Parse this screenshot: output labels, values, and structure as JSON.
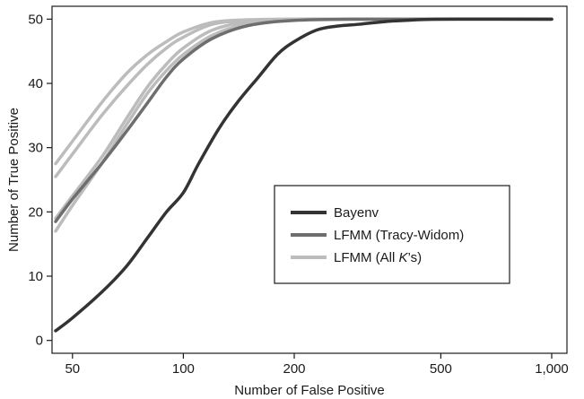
{
  "chart_data": {
    "type": "line",
    "xlabel": "Number of False Positive",
    "ylabel": "Number of True Positive",
    "x_scale": "log",
    "xlim": [
      44,
      1100
    ],
    "ylim": [
      -2,
      52
    ],
    "x_ticks": [
      {
        "value": 50,
        "label": "50"
      },
      {
        "value": 100,
        "label": "100"
      },
      {
        "value": 200,
        "label": "200"
      },
      {
        "value": 500,
        "label": "500"
      },
      {
        "value": 1000,
        "label": "1,000"
      }
    ],
    "y_ticks": [
      {
        "value": 0,
        "label": "0"
      },
      {
        "value": 10,
        "label": "10"
      },
      {
        "value": 20,
        "label": "20"
      },
      {
        "value": 30,
        "label": "30"
      },
      {
        "value": 40,
        "label": "40"
      },
      {
        "value": 50,
        "label": "50"
      }
    ],
    "grid": false,
    "legend_position": "lower-right",
    "legend": [
      {
        "label": "Bayenv",
        "color": "#333333"
      },
      {
        "label": "LFMM (Tracy-Widom)",
        "color": "#6e6e6e"
      },
      {
        "label": "LFMM (All ",
        "label_italic": "K",
        "label_suffix": "’s)",
        "color": "#bcbcbc"
      }
    ],
    "series": [
      {
        "group": "LFMM (All K’s)",
        "color": "#bcbcbc",
        "width": 3.5,
        "points": [
          [
            45,
            25.5
          ],
          [
            50,
            29
          ],
          [
            60,
            35
          ],
          [
            70,
            39.5
          ],
          [
            80,
            43
          ],
          [
            90,
            45.5
          ],
          [
            100,
            47.2
          ],
          [
            120,
            49.2
          ],
          [
            150,
            49.8
          ],
          [
            200,
            50
          ],
          [
            300,
            50
          ],
          [
            500,
            50
          ],
          [
            1000,
            50
          ]
        ]
      },
      {
        "group": "LFMM (All K’s)",
        "color": "#bcbcbc",
        "width": 3.5,
        "points": [
          [
            45,
            27.5
          ],
          [
            50,
            31
          ],
          [
            60,
            37
          ],
          [
            70,
            41.5
          ],
          [
            80,
            44.5
          ],
          [
            90,
            46.5
          ],
          [
            100,
            48
          ],
          [
            120,
            49.5
          ],
          [
            150,
            49.9
          ],
          [
            200,
            50
          ],
          [
            300,
            50
          ],
          [
            500,
            50
          ],
          [
            1000,
            50
          ]
        ]
      },
      {
        "group": "LFMM (All K’s)",
        "color": "#bcbcbc",
        "width": 3.5,
        "points": [
          [
            45,
            17
          ],
          [
            50,
            21
          ],
          [
            60,
            27.5
          ],
          [
            70,
            33.5
          ],
          [
            80,
            38.5
          ],
          [
            90,
            42
          ],
          [
            100,
            44.5
          ],
          [
            120,
            47.5
          ],
          [
            150,
            49.3
          ],
          [
            200,
            49.9
          ],
          [
            300,
            50
          ],
          [
            500,
            50
          ],
          [
            1000,
            50
          ]
        ]
      },
      {
        "group": "LFMM (All K’s)",
        "color": "#bcbcbc",
        "width": 3.5,
        "points": [
          [
            45,
            19
          ],
          [
            50,
            22.5
          ],
          [
            60,
            28.5
          ],
          [
            70,
            34.5
          ],
          [
            80,
            39.5
          ],
          [
            90,
            43
          ],
          [
            100,
            45.5
          ],
          [
            120,
            48.3
          ],
          [
            150,
            49.6
          ],
          [
            200,
            50
          ],
          [
            300,
            50
          ],
          [
            500,
            50
          ],
          [
            1000,
            50
          ]
        ]
      },
      {
        "group": "LFMM (Tracy-Widom)",
        "color": "#6e6e6e",
        "width": 3.5,
        "points": [
          [
            45,
            18.5
          ],
          [
            50,
            22
          ],
          [
            60,
            27.5
          ],
          [
            70,
            32.5
          ],
          [
            80,
            37
          ],
          [
            90,
            41
          ],
          [
            100,
            43.8
          ],
          [
            120,
            47
          ],
          [
            150,
            49
          ],
          [
            200,
            49.8
          ],
          [
            300,
            50
          ],
          [
            500,
            50
          ],
          [
            1000,
            50
          ]
        ]
      },
      {
        "group": "Bayenv",
        "color": "#333333",
        "width": 3.5,
        "points": [
          [
            45,
            1.5
          ],
          [
            50,
            3.5
          ],
          [
            60,
            7.5
          ],
          [
            70,
            11.5
          ],
          [
            80,
            16
          ],
          [
            90,
            20
          ],
          [
            100,
            23
          ],
          [
            110,
            27.5
          ],
          [
            125,
            33
          ],
          [
            140,
            37
          ],
          [
            160,
            41
          ],
          [
            180,
            44.5
          ],
          [
            200,
            46.5
          ],
          [
            230,
            48.3
          ],
          [
            260,
            48.9
          ],
          [
            300,
            49.2
          ],
          [
            350,
            49.6
          ],
          [
            400,
            49.8
          ],
          [
            500,
            50
          ],
          [
            1000,
            50
          ]
        ]
      }
    ]
  }
}
